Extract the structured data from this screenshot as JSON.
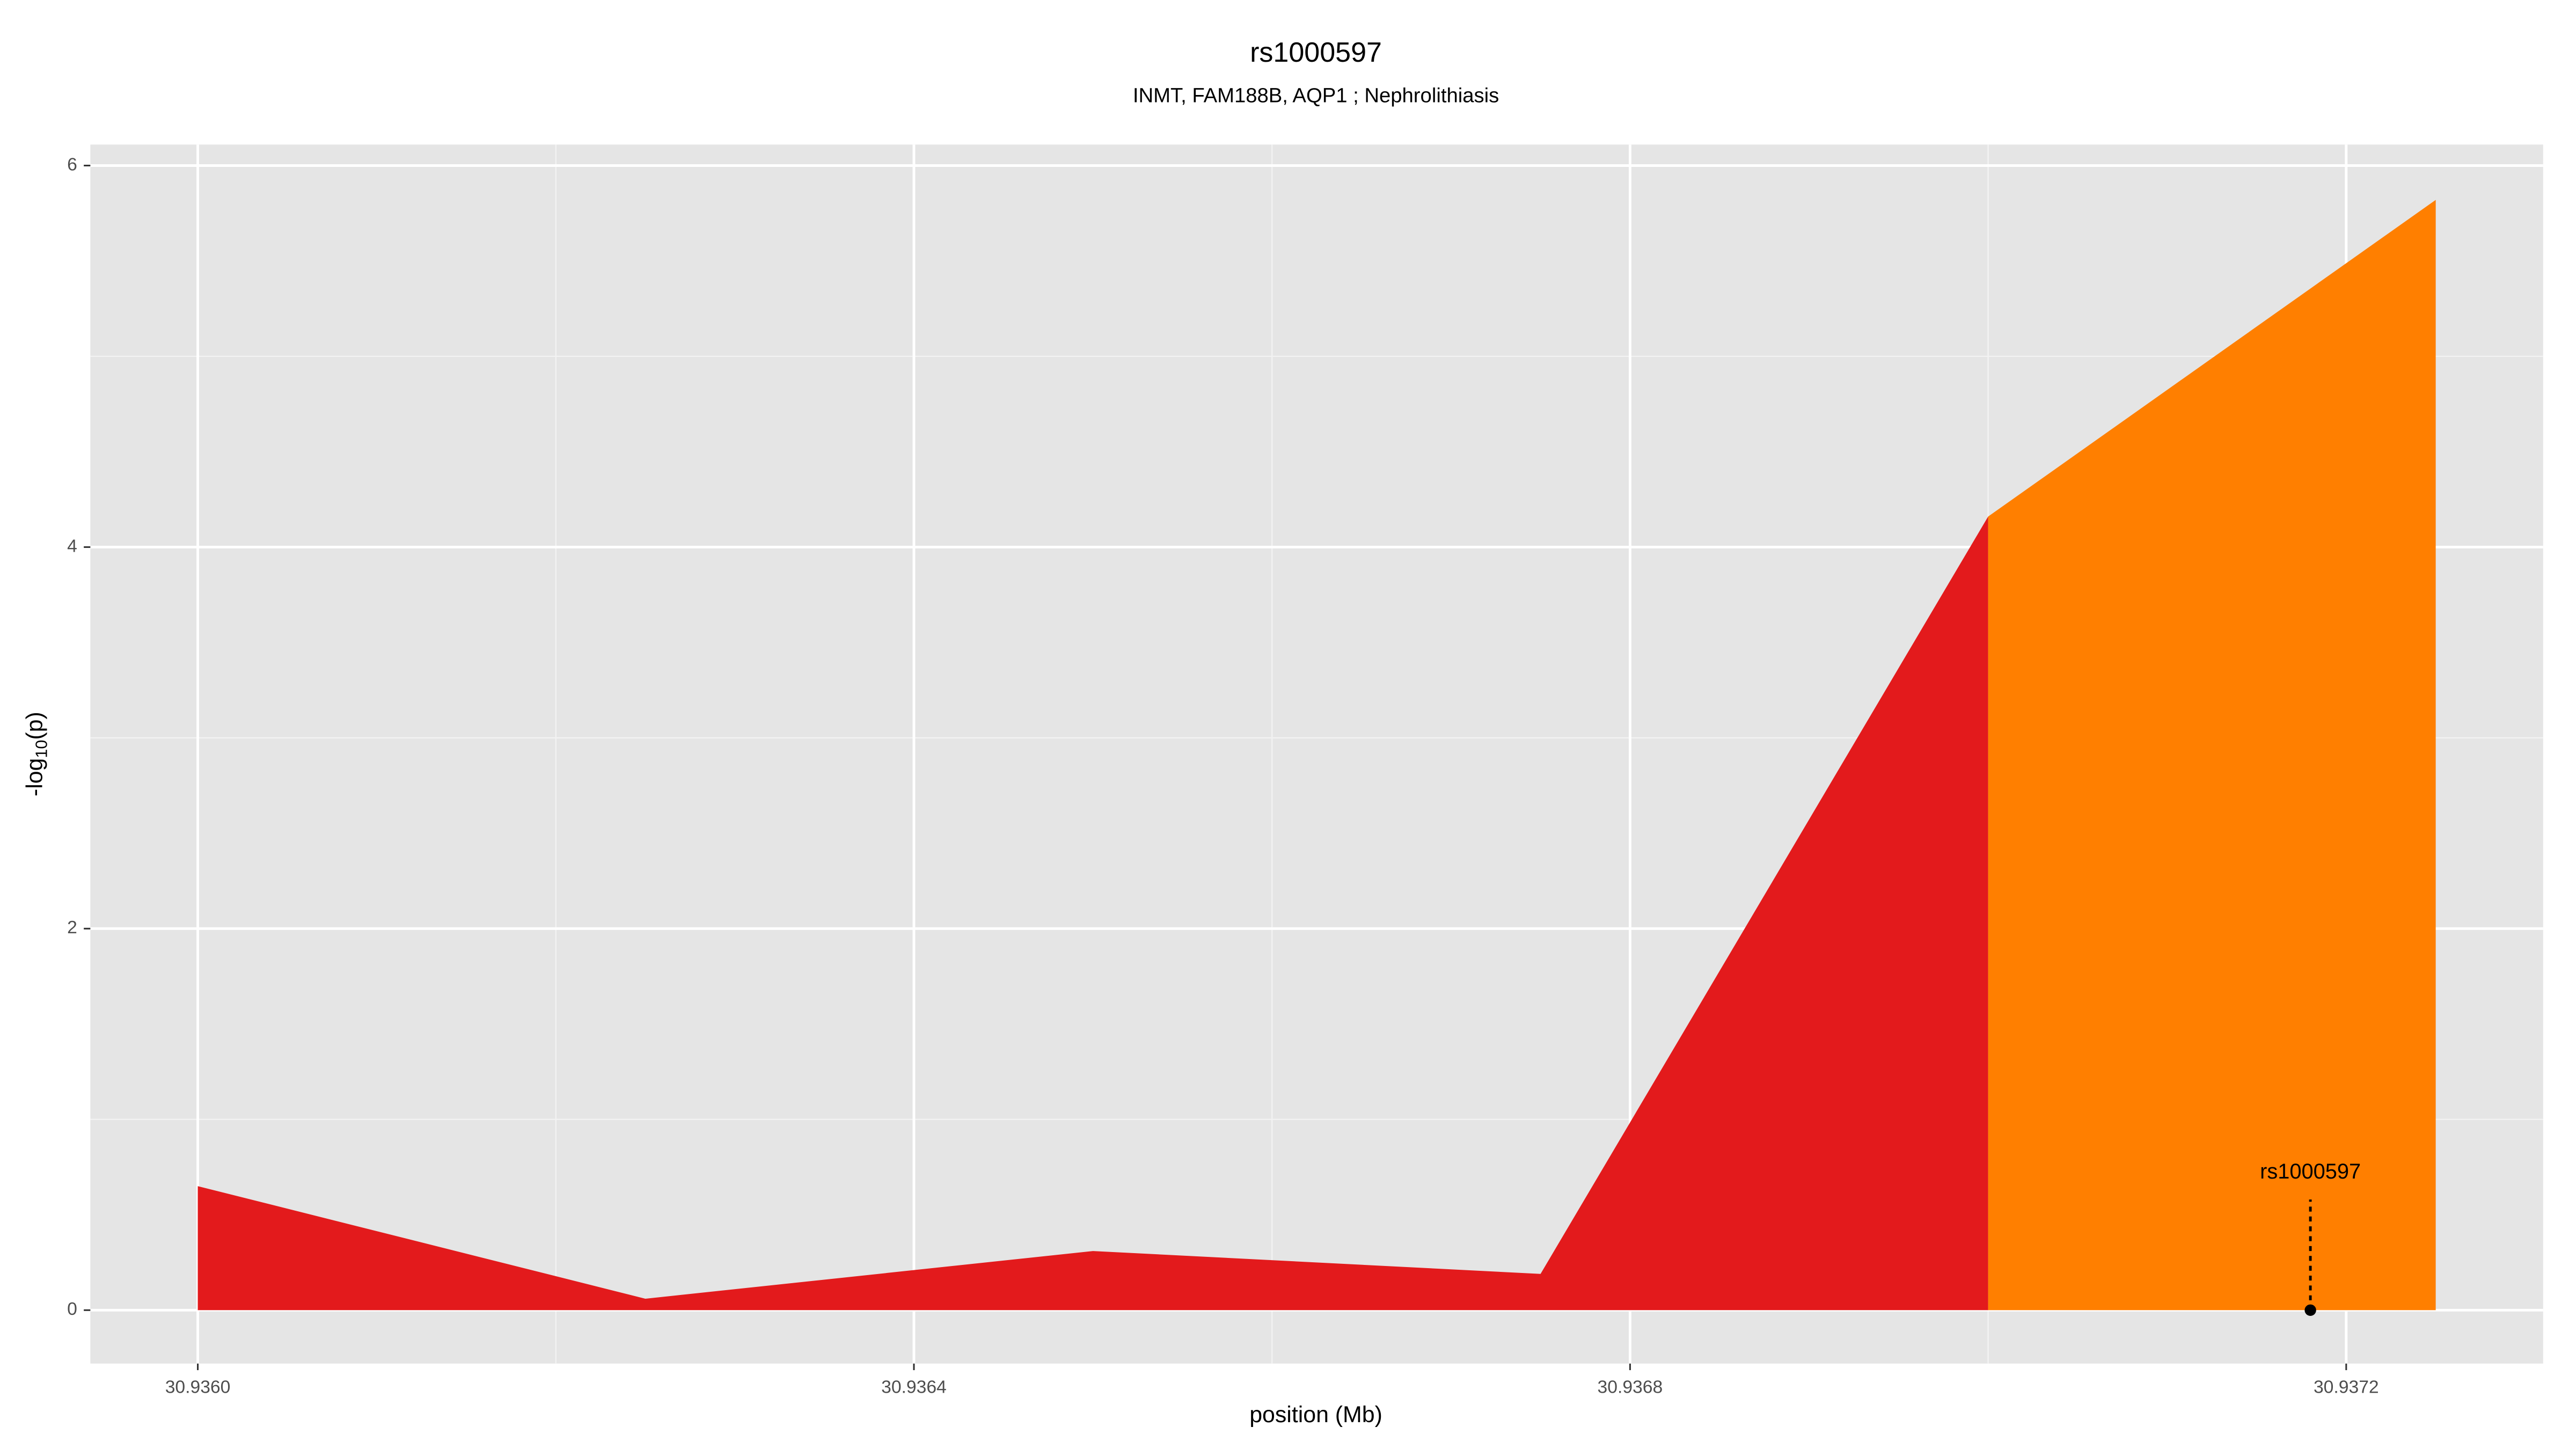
{
  "chart_data": {
    "type": "area",
    "title": "rs1000597",
    "subtitle": "INMT, FAM188B, AQP1 ; Nephrolithiasis",
    "xlabel": "position (Mb)",
    "ylabel_parts": [
      "-log",
      "10",
      "(p)"
    ],
    "x": [
      30.936,
      30.93625,
      30.9365,
      30.93675,
      30.937,
      30.93725
    ],
    "series": [
      {
        "color": "#e31a1c",
        "values": [
          0.65,
          0.06,
          0.31,
          0.19,
          4.16,
          null
        ]
      },
      {
        "color": "#ff7f00",
        "values": [
          null,
          null,
          null,
          null,
          4.16,
          5.82
        ]
      }
    ],
    "xlim": [
      30.93594,
      30.93731
    ],
    "ylim": [
      -0.28,
      6.11
    ],
    "xticks": [
      {
        "value": 30.936,
        "label": "30.9360"
      },
      {
        "value": 30.9364,
        "label": "30.9364"
      },
      {
        "value": 30.9368,
        "label": "30.9368"
      },
      {
        "value": 30.9372,
        "label": "30.9372"
      }
    ],
    "yticks": [
      0,
      2,
      4,
      6
    ],
    "x_minor_grid": [
      30.9362,
      30.9366,
      30.937
    ],
    "y_minor_grid": [
      1,
      3,
      5
    ],
    "grid": true,
    "annotation": {
      "label": "rs1000597",
      "x": 30.93718,
      "y": 0,
      "line_top": 0.58,
      "label_y": 0.72
    }
  }
}
